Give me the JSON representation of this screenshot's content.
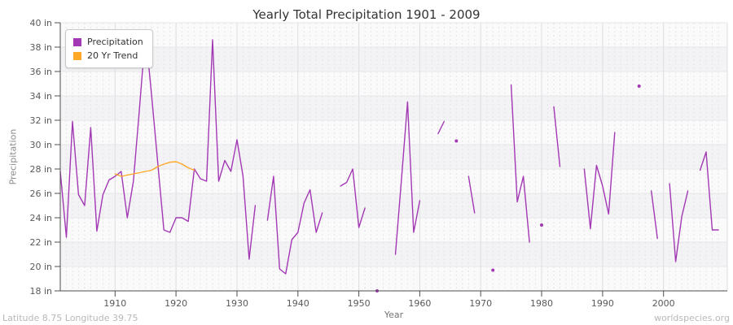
{
  "footer": {
    "left": "Latitude 8.75 Longitude 39.75",
    "right": "worldspecies.org"
  },
  "colors": {
    "background": "#ffffff",
    "band_light": "#fafafa",
    "band_dark": "#f3f3f5",
    "grid_minor": "#e4e4e8",
    "grid_major": "#dddde2",
    "grid_horizontal": "#e7e7eb",
    "axis": "#4d4d4d",
    "tick_label": "#595959",
    "title_text": "#333333",
    "footer_text": "#b8b8b8"
  },
  "chart_data": {
    "type": "line",
    "title": "Yearly Total Precipitation 1901 - 2009",
    "xlabel": "Year",
    "ylabel": "Precipitation",
    "xlim": [
      1901,
      2009
    ],
    "ylim": [
      18,
      40
    ],
    "grid": true,
    "legend_position": "top-left",
    "yticks": [
      {
        "value": 18,
        "label": "18 in"
      },
      {
        "value": 20,
        "label": "20 in"
      },
      {
        "value": 22,
        "label": "22 in"
      },
      {
        "value": 24,
        "label": "24 in"
      },
      {
        "value": 26,
        "label": "26 in"
      },
      {
        "value": 28,
        "label": "28 in"
      },
      {
        "value": 30,
        "label": "30 in"
      },
      {
        "value": 32,
        "label": "32 in"
      },
      {
        "value": 34,
        "label": "34 in"
      },
      {
        "value": 36,
        "label": "36 in"
      },
      {
        "value": 38,
        "label": "38 in"
      },
      {
        "value": 40,
        "label": "40 in"
      }
    ],
    "xticks": [
      {
        "value": 1910,
        "label": "1910"
      },
      {
        "value": 1920,
        "label": "1920"
      },
      {
        "value": 1930,
        "label": "1930"
      },
      {
        "value": 1940,
        "label": "1940"
      },
      {
        "value": 1950,
        "label": "1950"
      },
      {
        "value": 1960,
        "label": "1960"
      },
      {
        "value": 1970,
        "label": "1970"
      },
      {
        "value": 1980,
        "label": "1980"
      },
      {
        "value": 1990,
        "label": "1990"
      },
      {
        "value": 2000,
        "label": "2000"
      }
    ],
    "series": [
      {
        "name": "Precipitation",
        "color": "#A238B4",
        "x_start": 1901,
        "step": 1,
        "values": [
          27.8,
          22.4,
          31.9,
          25.9,
          25.0,
          31.4,
          22.9,
          25.9,
          27.1,
          27.4,
          27.8,
          24.0,
          27.0,
          33.0,
          39.2,
          34.0,
          28.5,
          23.0,
          22.8,
          24.0,
          24.0,
          23.7,
          28.0,
          27.2,
          27.0,
          38.6,
          27.0,
          28.7,
          27.8,
          30.4,
          27.4,
          20.6,
          25.0,
          null,
          23.8,
          27.4,
          19.8,
          19.4,
          22.2,
          22.8,
          25.2,
          26.3,
          22.8,
          24.4,
          null,
          null,
          26.6,
          26.9,
          28.0,
          23.2,
          24.8,
          null,
          18.0,
          null,
          null,
          21.0,
          27.2,
          33.5,
          22.8,
          25.4,
          null,
          null,
          30.9,
          31.9,
          null,
          30.3,
          null,
          27.4,
          24.4,
          null,
          null,
          19.7,
          null,
          null,
          34.9,
          25.3,
          27.4,
          22.0,
          null,
          23.4,
          null,
          33.1,
          28.2,
          null,
          null,
          null,
          28.0,
          23.1,
          28.3,
          26.6,
          24.3,
          31.0,
          null,
          null,
          null,
          34.8,
          null,
          26.2,
          22.3,
          null,
          26.8,
          20.4,
          24.1,
          26.2,
          null,
          27.9,
          29.4,
          23.0,
          23.0
        ]
      },
      {
        "name": "20 Yr Trend",
        "color": "#FFA726",
        "x_start": 1910,
        "step": 1,
        "values": [
          27.6,
          27.4,
          27.5,
          27.6,
          27.7,
          27.8,
          27.9,
          28.2,
          28.4,
          28.55,
          28.6,
          28.4,
          28.1,
          27.9
        ]
      }
    ]
  }
}
